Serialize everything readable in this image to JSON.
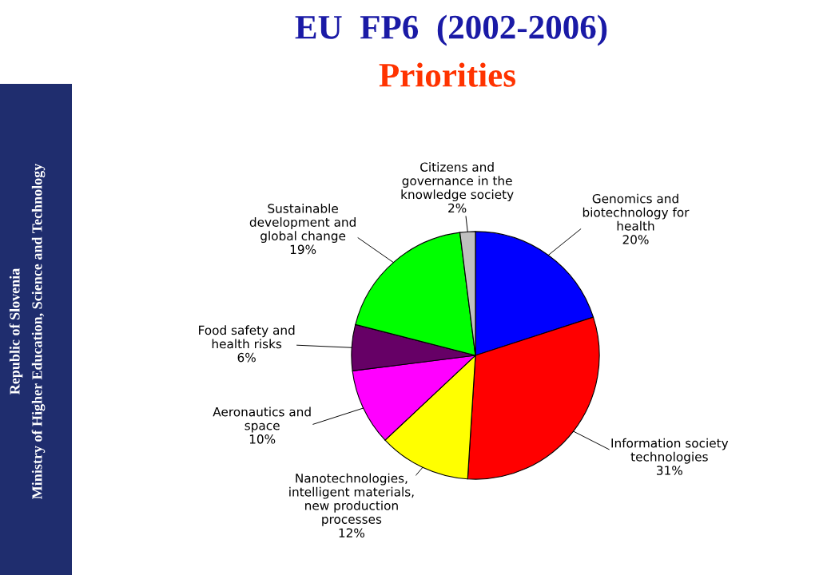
{
  "chart_data": {
    "type": "pie",
    "title": "EU  FP6  (2002-2006)",
    "subtitle": "Priorities",
    "categories": [
      "Genomics and\nbiotechnology for\nhealth",
      "Information society\ntechnologies",
      "Nanotechnologies,\nintelligent materials,\nnew production\nprocesses",
      "Aeronautics and\nspace",
      "Food safety and\nhealth risks",
      "Sustainable\ndevelopment and\nglobal change",
      "Citizens and\ngovernance in the\nknowledge society"
    ],
    "values": [
      20,
      31,
      12,
      10,
      6,
      19,
      2
    ],
    "value_labels": [
      "20%",
      "31%",
      "12%",
      "10%",
      "6%",
      "19%",
      "2%"
    ],
    "colors": [
      "#0000ff",
      "#ff0000",
      "#ffff00",
      "#ff00ff",
      "#660066",
      "#00ff00",
      "#c0c0c0"
    ],
    "annotations": [
      "Republic of Slovenia",
      "Ministry of Higher Education, Science and Technology"
    ],
    "legend": false
  }
}
